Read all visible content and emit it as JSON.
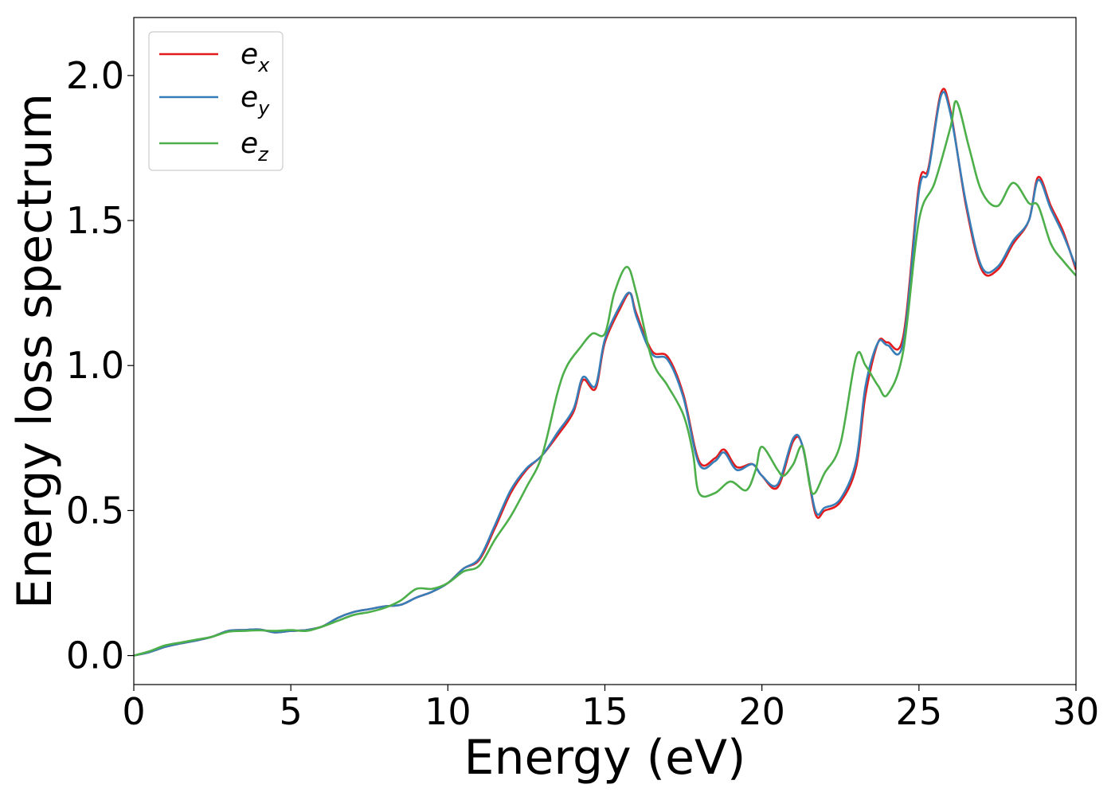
{
  "chart_data": {
    "type": "line",
    "xlabel": "Energy (eV)",
    "ylabel": "Energy loss spectrum",
    "xlim": [
      0,
      30
    ],
    "ylim": [
      -0.1,
      2.2
    ],
    "xticks": [
      0,
      5,
      10,
      15,
      20,
      25,
      30
    ],
    "xtick_labels": [
      "0",
      "5",
      "10",
      "15",
      "20",
      "25",
      "30"
    ],
    "yticks": [
      0.0,
      0.5,
      1.0,
      1.5,
      2.0
    ],
    "ytick_labels": [
      "0.0",
      "0.5",
      "1.0",
      "1.5",
      "2.0"
    ],
    "grid": false,
    "legend": {
      "placement": "top-left",
      "entries": [
        {
          "base": "e",
          "sub": "x"
        },
        {
          "base": "e",
          "sub": "y"
        },
        {
          "base": "e",
          "sub": "z"
        }
      ]
    },
    "series": [
      {
        "color": "#e41a1c",
        "x": [
          0,
          0.5,
          1,
          1.5,
          2,
          2.5,
          3,
          3.5,
          4,
          4.5,
          5,
          5.5,
          6,
          6.5,
          7,
          7.5,
          8,
          8.5,
          9,
          9.5,
          10,
          10.5,
          11,
          11.5,
          12,
          12.5,
          13,
          13.5,
          14,
          14.3,
          14.7,
          15,
          15.5,
          15.8,
          16,
          16.5,
          17,
          17.5,
          18,
          18.5,
          18.8,
          19.2,
          19.7,
          20,
          20.5,
          21,
          21.3,
          21.7,
          22,
          22.5,
          23,
          23.3,
          23.7,
          24,
          24.5,
          25,
          25.3,
          25.7,
          26,
          26.5,
          27,
          27.5,
          28,
          28.5,
          28.8,
          29.2,
          29.6,
          30
        ],
        "y": [
          0.0,
          0.012,
          0.03,
          0.042,
          0.052,
          0.065,
          0.085,
          0.088,
          0.09,
          0.08,
          0.085,
          0.088,
          0.1,
          0.13,
          0.15,
          0.16,
          0.17,
          0.175,
          0.2,
          0.22,
          0.25,
          0.3,
          0.33,
          0.44,
          0.56,
          0.64,
          0.69,
          0.76,
          0.84,
          0.95,
          0.92,
          1.08,
          1.2,
          1.25,
          1.18,
          1.05,
          1.03,
          0.9,
          0.67,
          0.68,
          0.71,
          0.65,
          0.66,
          0.62,
          0.58,
          0.74,
          0.72,
          0.49,
          0.5,
          0.53,
          0.65,
          0.9,
          1.08,
          1.08,
          1.1,
          1.62,
          1.68,
          1.94,
          1.88,
          1.55,
          1.33,
          1.33,
          1.42,
          1.5,
          1.65,
          1.55,
          1.46,
          1.33
        ]
      },
      {
        "color": "#377eb8",
        "x": [
          0,
          0.5,
          1,
          1.5,
          2,
          2.5,
          3,
          3.5,
          4,
          4.5,
          5,
          5.5,
          6,
          6.5,
          7,
          7.5,
          8,
          8.5,
          9,
          9.5,
          10,
          10.5,
          11,
          11.5,
          12,
          12.5,
          13,
          13.5,
          14,
          14.3,
          14.7,
          15,
          15.5,
          15.8,
          16,
          16.5,
          17,
          17.5,
          18,
          18.5,
          18.8,
          19.2,
          19.7,
          20,
          20.5,
          21,
          21.3,
          21.7,
          22,
          22.5,
          23,
          23.3,
          23.7,
          24,
          24.5,
          25,
          25.3,
          25.7,
          26,
          26.5,
          27,
          27.5,
          28,
          28.5,
          28.8,
          29.2,
          29.6,
          30
        ],
        "y": [
          0.0,
          0.012,
          0.03,
          0.042,
          0.052,
          0.065,
          0.085,
          0.088,
          0.09,
          0.08,
          0.085,
          0.088,
          0.1,
          0.13,
          0.15,
          0.16,
          0.17,
          0.175,
          0.2,
          0.22,
          0.25,
          0.3,
          0.335,
          0.45,
          0.57,
          0.645,
          0.69,
          0.77,
          0.85,
          0.96,
          0.93,
          1.09,
          1.21,
          1.25,
          1.17,
          1.04,
          1.02,
          0.89,
          0.66,
          0.67,
          0.7,
          0.64,
          0.66,
          0.62,
          0.59,
          0.75,
          0.72,
          0.5,
          0.51,
          0.54,
          0.67,
          0.93,
          1.08,
          1.07,
          1.08,
          1.6,
          1.67,
          1.93,
          1.87,
          1.56,
          1.34,
          1.34,
          1.43,
          1.5,
          1.64,
          1.54,
          1.45,
          1.34
        ]
      },
      {
        "color": "#4daf4a",
        "x": [
          0,
          0.5,
          1,
          1.5,
          2,
          2.5,
          3,
          3.5,
          4,
          4.5,
          5,
          5.5,
          6,
          6.5,
          7,
          7.5,
          8,
          8.5,
          9,
          9.5,
          10,
          10.5,
          11,
          11.5,
          12,
          12.5,
          13,
          13.5,
          13.8,
          14.2,
          14.6,
          15,
          15.3,
          15.7,
          16,
          16.5,
          17,
          17.5,
          17.8,
          18,
          18.5,
          19,
          19.5,
          19.8,
          20,
          20.5,
          20.7,
          21,
          21.3,
          21.6,
          22,
          22.5,
          23,
          23.3,
          23.7,
          24,
          24.5,
          25,
          25.5,
          26,
          26.2,
          26.6,
          27,
          27.5,
          28,
          28.5,
          28.8,
          29.2,
          29.6,
          30
        ],
        "y": [
          0.0,
          0.015,
          0.035,
          0.045,
          0.055,
          0.065,
          0.082,
          0.085,
          0.087,
          0.085,
          0.088,
          0.085,
          0.1,
          0.12,
          0.14,
          0.15,
          0.165,
          0.19,
          0.23,
          0.23,
          0.25,
          0.29,
          0.31,
          0.4,
          0.48,
          0.58,
          0.69,
          0.91,
          1.0,
          1.06,
          1.11,
          1.11,
          1.25,
          1.34,
          1.25,
          1.02,
          0.93,
          0.83,
          0.7,
          0.56,
          0.56,
          0.6,
          0.57,
          0.64,
          0.72,
          0.64,
          0.62,
          0.66,
          0.72,
          0.56,
          0.63,
          0.73,
          1.03,
          1.0,
          0.93,
          0.9,
          1.05,
          1.5,
          1.63,
          1.82,
          1.91,
          1.75,
          1.6,
          1.55,
          1.63,
          1.56,
          1.55,
          1.42,
          1.36,
          1.31
        ]
      }
    ]
  }
}
